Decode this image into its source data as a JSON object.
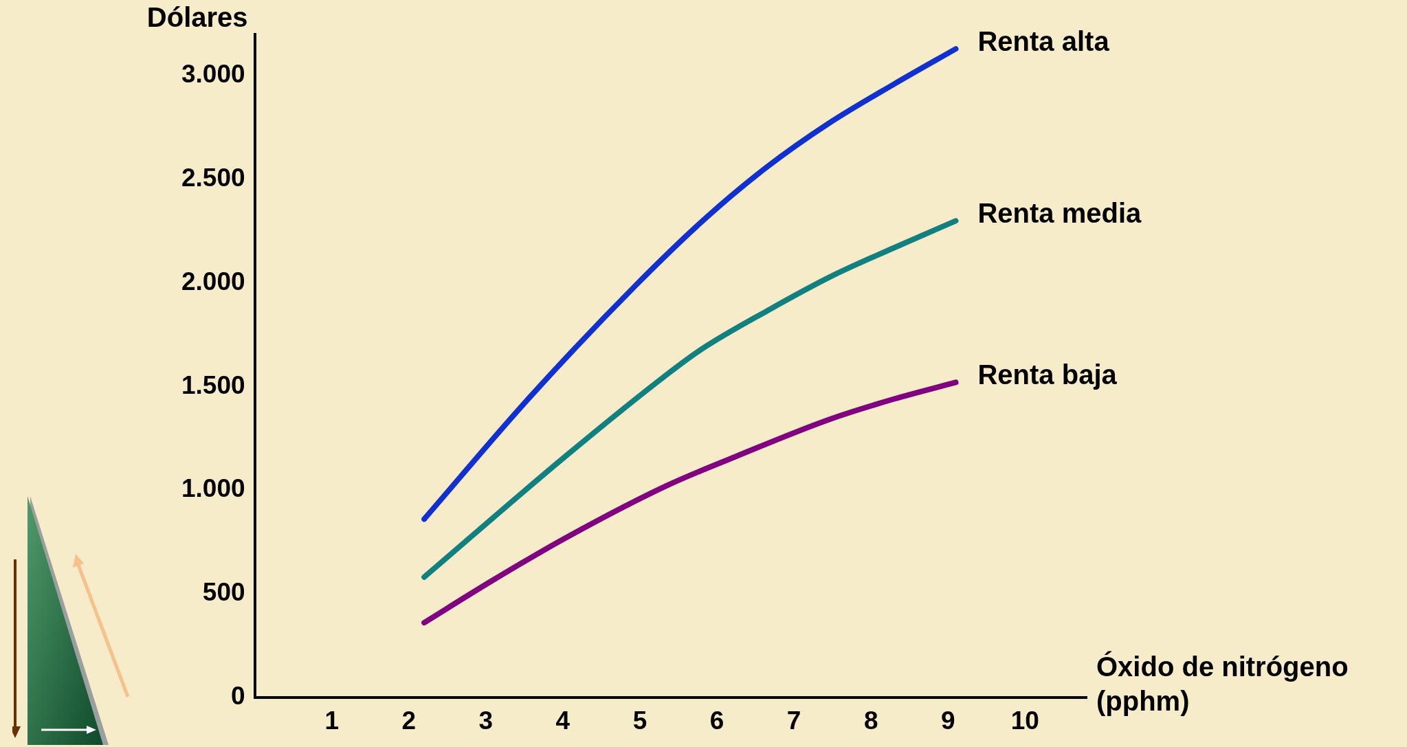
{
  "chart_data": {
    "type": "line",
    "xlabel": "Óxido de nitrógeno\n(pphm)",
    "ylabel": "Dólares",
    "xlim": [
      0,
      10.8
    ],
    "xticks": [
      1,
      2,
      3,
      4,
      5,
      6,
      7,
      8,
      9,
      10
    ],
    "ylim": [
      0,
      3200
    ],
    "yticks": [
      {
        "value": 0,
        "label": "0"
      },
      500,
      {
        "value": 1000,
        "label": "1.000"
      },
      {
        "value": 1500,
        "label": "1.500"
      },
      {
        "value": 2000,
        "label": "2.000"
      },
      {
        "value": 2500,
        "label": "2.500"
      },
      {
        "value": 3000,
        "label": "3.000"
      }
    ],
    "grid": false,
    "legend": false,
    "marker": "none",
    "line_style": "solid",
    "series": [
      {
        "name": "Renta alta",
        "color": "#1030d0",
        "x": [
          2.2,
          3.55,
          4.95,
          5.86,
          6.65,
          7.45,
          8.3,
          9.1
        ],
        "values": [
          860,
          1440,
          1990,
          2315,
          2560,
          2770,
          2960,
          3130
        ]
      },
      {
        "name": "Renta media",
        "color": "#108080",
        "x": [
          2.2,
          4.04,
          5.34,
          5.8,
          6.65,
          7.5,
          8.3,
          9.1
        ],
        "values": [
          580,
          1165,
          1555,
          1680,
          1865,
          2035,
          2170,
          2300
        ]
      },
      {
        "name": "Renta baja",
        "color": "#800080",
        "x": [
          2.2,
          3.07,
          4.04,
          5.34,
          6.23,
          7.45,
          8.3,
          9.1
        ],
        "values": [
          360,
          560,
          770,
          1020,
          1160,
          1340,
          1440,
          1520
        ]
      }
    ]
  }
}
